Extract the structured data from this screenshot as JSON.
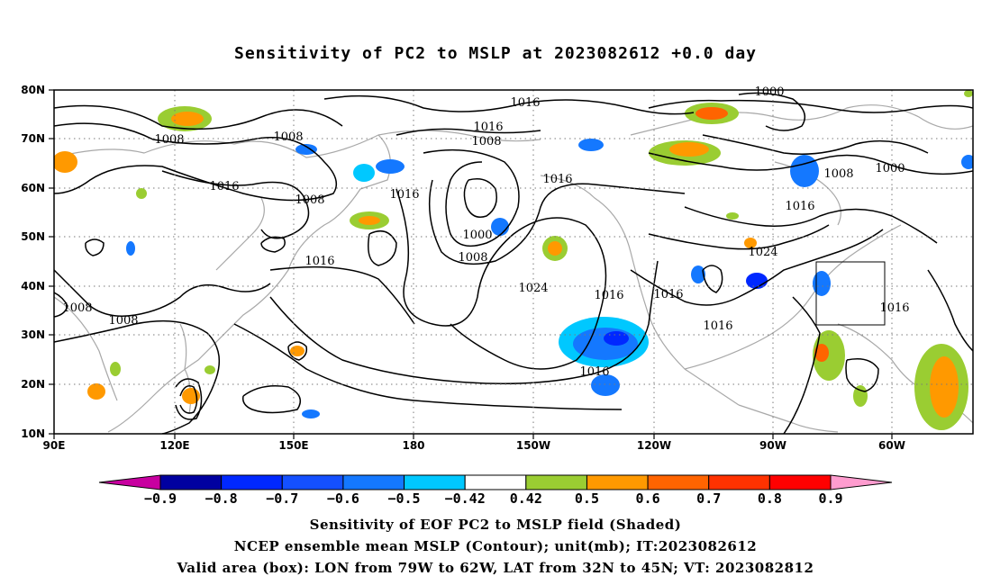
{
  "title": "Sensitivity of PC2 to MSLP at 2023082612 +0.0 day",
  "map": {
    "lon_labels": [
      "90E",
      "120E",
      "150E",
      "180",
      "150W",
      "120W",
      "90W",
      "60W"
    ],
    "lat_labels": [
      "80N",
      "70N",
      "60N",
      "50N",
      "40N",
      "30N",
      "20N",
      "10N"
    ],
    "contour_labels": [
      "1016",
      "1000",
      "1008",
      "1016",
      "1008",
      "1008",
      "1016",
      "1008",
      "1016",
      "1016",
      "1008",
      "1016",
      "1016",
      "1000",
      "1008",
      "1000",
      "1024",
      "1016",
      "1016",
      "1016",
      "1024",
      "1008",
      "1008",
      "1016",
      "1016"
    ],
    "colors": {
      "land_outline": "#a8a8a8",
      "contour": "#000000",
      "grid": "#7a7a7a"
    }
  },
  "colorbar": {
    "labels": [
      "-0.9",
      "-0.8",
      "-0.7",
      "-0.6",
      "-0.5",
      "-0.42",
      "0.42",
      "0.5",
      "0.6",
      "0.7",
      "0.8",
      "0.9"
    ],
    "colors": [
      "#c800a0",
      "#0000a0",
      "#0028ff",
      "#1450ff",
      "#1478ff",
      "#00c8ff",
      "#ffffff",
      "#9acd32",
      "#ff9900",
      "#ff6400",
      "#ff3200",
      "#ff0000",
      "#ff9ccf"
    ]
  },
  "captions": [
    "Sensitivity of EOF PC2 to MSLP field (Shaded)",
    "NCEP ensemble mean MSLP (Contour); unit(mb); IT:2023082612",
    "Valid area (box): LON from 79W to 62W, LAT from 32N to 45N; VT: 2023082812"
  ]
}
